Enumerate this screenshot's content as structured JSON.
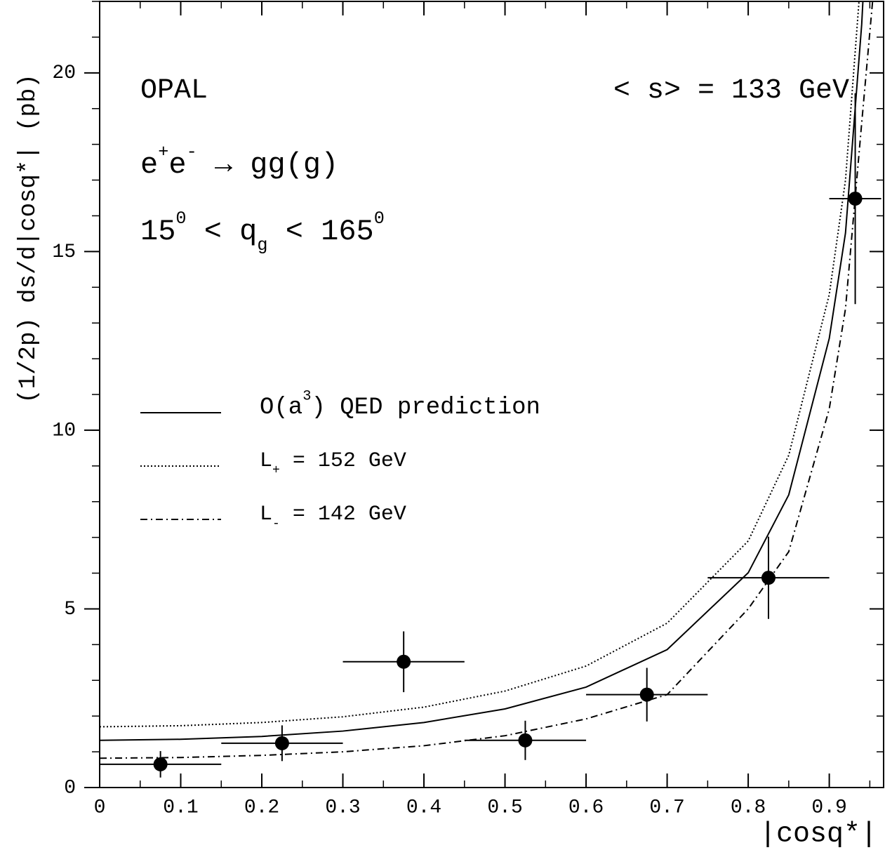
{
  "chart_data": {
    "type": "scatter",
    "x_label": "|cosq*|",
    "y_label": "(1/2p)  ds/d|cosq*|  (pb)",
    "xlim": [
      0,
      0.967
    ],
    "ylim": [
      0,
      22
    ],
    "xticks": [
      0,
      0.1,
      0.2,
      0.3,
      0.4,
      0.5,
      0.6,
      0.7,
      0.8,
      0.9
    ],
    "yticks": [
      0,
      5,
      10,
      15,
      20
    ],
    "grid": false,
    "annotations": [
      {
        "parts": [
          {
            "text": "OPAL"
          }
        ]
      },
      {
        "parts": [
          {
            "text": "< s> = 133 GeV"
          }
        ]
      },
      {
        "parts": [
          {
            "text": "e"
          },
          {
            "text": "+",
            "sup": true
          },
          {
            "text": "e"
          },
          {
            "text": "-",
            "sup": true
          },
          {
            "text": " → gg(g)"
          }
        ]
      },
      {
        "parts": [
          {
            "text": "15"
          },
          {
            "text": "0",
            "sup": true
          },
          {
            "text": " < q"
          },
          {
            "text": "g",
            "sub": true
          },
          {
            "text": " < 165"
          },
          {
            "text": "0",
            "sup": true
          }
        ]
      }
    ],
    "legend": [
      {
        "parts": [
          {
            "text": "O(a"
          },
          {
            "text": "3",
            "sup": true
          },
          {
            "text": ") QED prediction"
          }
        ]
      },
      {
        "parts": [
          {
            "text": "L"
          },
          {
            "text": "+",
            "sub": true
          },
          {
            "text": " = 152 GeV"
          }
        ]
      },
      {
        "parts": [
          {
            "text": "L"
          },
          {
            "text": "-",
            "sub": true
          },
          {
            "text": " = 142 GeV"
          }
        ]
      }
    ],
    "series": [
      {
        "kind": "points",
        "color": "#000000",
        "x": [
          0.075,
          0.225,
          0.375,
          0.525,
          0.675,
          0.825,
          0.932
        ],
        "values": [
          0.65,
          1.24,
          3.52,
          1.32,
          2.6,
          5.87,
          16.48
        ],
        "yerr": [
          0.37,
          0.5,
          0.85,
          0.55,
          0.75,
          1.15,
          2.95
        ],
        "xerr": [
          0.075,
          0.075,
          0.075,
          0.075,
          0.075,
          0.075,
          0.032
        ]
      },
      {
        "kind": "curve",
        "style": "solid",
        "color": "#000000",
        "x": [
          0,
          0.1,
          0.2,
          0.3,
          0.4,
          0.5,
          0.6,
          0.7,
          0.8,
          0.85,
          0.9,
          0.92,
          0.94,
          0.95
        ],
        "values": [
          1.32,
          1.35,
          1.43,
          1.58,
          1.82,
          2.2,
          2.81,
          3.86,
          6.01,
          8.19,
          12.57,
          15.52,
          21.36,
          25.75
        ]
      },
      {
        "kind": "curve",
        "style": "dotted",
        "color": "#000000",
        "x": [
          0,
          0.1,
          0.2,
          0.3,
          0.4,
          0.5,
          0.6,
          0.7,
          0.8,
          0.85,
          0.9,
          0.92,
          0.94
        ],
        "values": [
          1.7,
          1.73,
          1.82,
          1.98,
          2.25,
          2.7,
          3.4,
          4.6,
          6.9,
          9.3,
          13.8,
          17,
          23
        ]
      },
      {
        "kind": "curve",
        "style": "dashdot",
        "color": "#000000",
        "x": [
          0,
          0.1,
          0.2,
          0.3,
          0.4,
          0.5,
          0.6,
          0.7,
          0.8,
          0.85,
          0.9,
          0.92,
          0.94,
          0.955
        ],
        "values": [
          0.82,
          0.84,
          0.9,
          1.0,
          1.17,
          1.45,
          1.92,
          2.6,
          5.0,
          6.6,
          10.6,
          13.4,
          18.6,
          22.4
        ]
      }
    ]
  }
}
